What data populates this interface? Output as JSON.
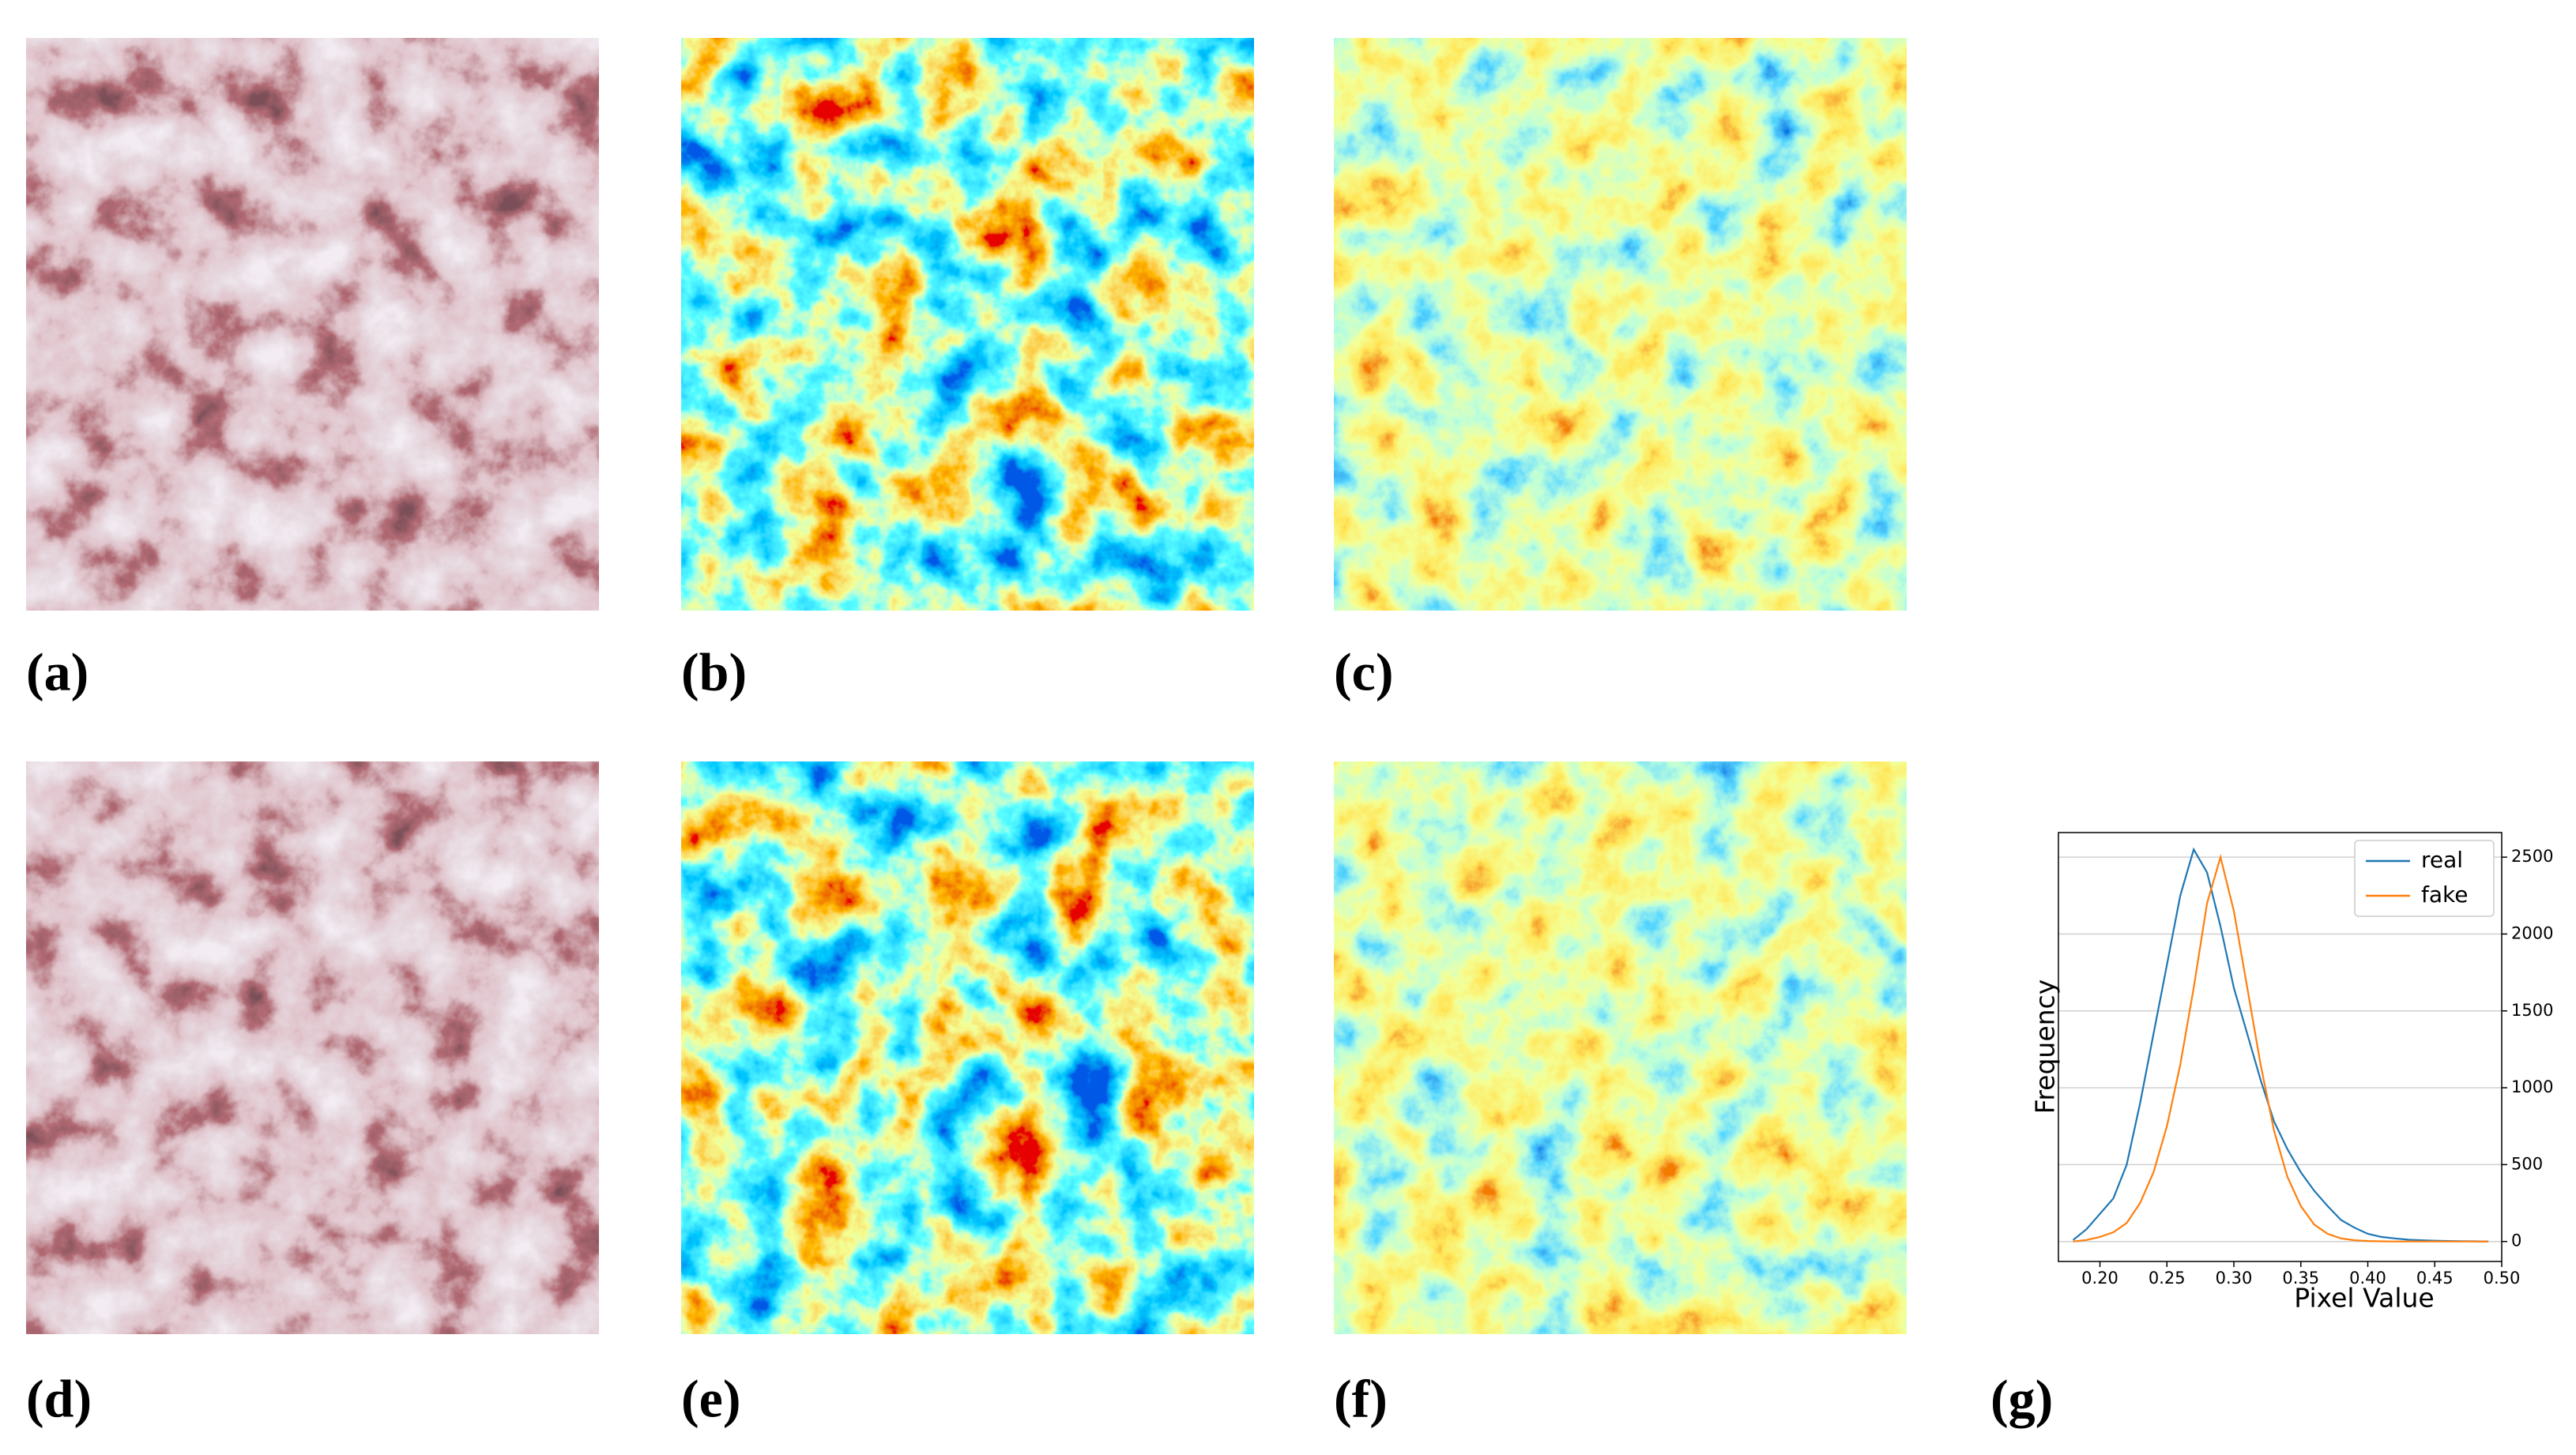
{
  "panels": [
    "(a)",
    "(b)",
    "(c)",
    "(d)",
    "(e)",
    "(f)",
    "(g)"
  ],
  "chart_data": {
    "type": "line",
    "xlabel": "Pixel Value",
    "ylabel": "Frequency",
    "x": [
      0.18,
      0.19,
      0.2,
      0.21,
      0.22,
      0.23,
      0.24,
      0.25,
      0.26,
      0.27,
      0.28,
      0.29,
      0.3,
      0.31,
      0.32,
      0.33,
      0.34,
      0.35,
      0.36,
      0.37,
      0.38,
      0.39,
      0.4,
      0.41,
      0.42,
      0.43,
      0.44,
      0.45,
      0.46,
      0.47,
      0.48,
      0.49
    ],
    "series": [
      {
        "name": "real",
        "color": "#1f77b4",
        "values": [
          10,
          80,
          180,
          280,
          500,
          900,
          1350,
          1800,
          2250,
          2550,
          2400,
          2050,
          1650,
          1350,
          1050,
          780,
          600,
          450,
          330,
          230,
          140,
          90,
          50,
          30,
          20,
          12,
          8,
          5,
          3,
          2,
          1,
          0
        ]
      },
      {
        "name": "fake",
        "color": "#ff7f0e",
        "values": [
          0,
          10,
          30,
          60,
          120,
          250,
          450,
          750,
          1150,
          1650,
          2200,
          2500,
          2150,
          1650,
          1150,
          720,
          420,
          230,
          110,
          50,
          20,
          8,
          3,
          1,
          0,
          0,
          0,
          0,
          0,
          0,
          0,
          0
        ]
      }
    ],
    "xlim": [
      0.169,
      0.5
    ],
    "xticks": [
      {
        "value": 0.2,
        "label": "0.20"
      },
      0.25,
      {
        "value": 0.3,
        "label": "0.30"
      },
      0.35,
      {
        "value": 0.4,
        "label": "0.40"
      },
      0.45,
      {
        "value": 0.5,
        "label": "0.50"
      }
    ],
    "ylim": [
      -130,
      2660
    ],
    "yticks": [
      0,
      500,
      1000,
      1500,
      2000,
      2500
    ],
    "y_axis_side": "right",
    "grid": true,
    "legend": "upper-right"
  }
}
